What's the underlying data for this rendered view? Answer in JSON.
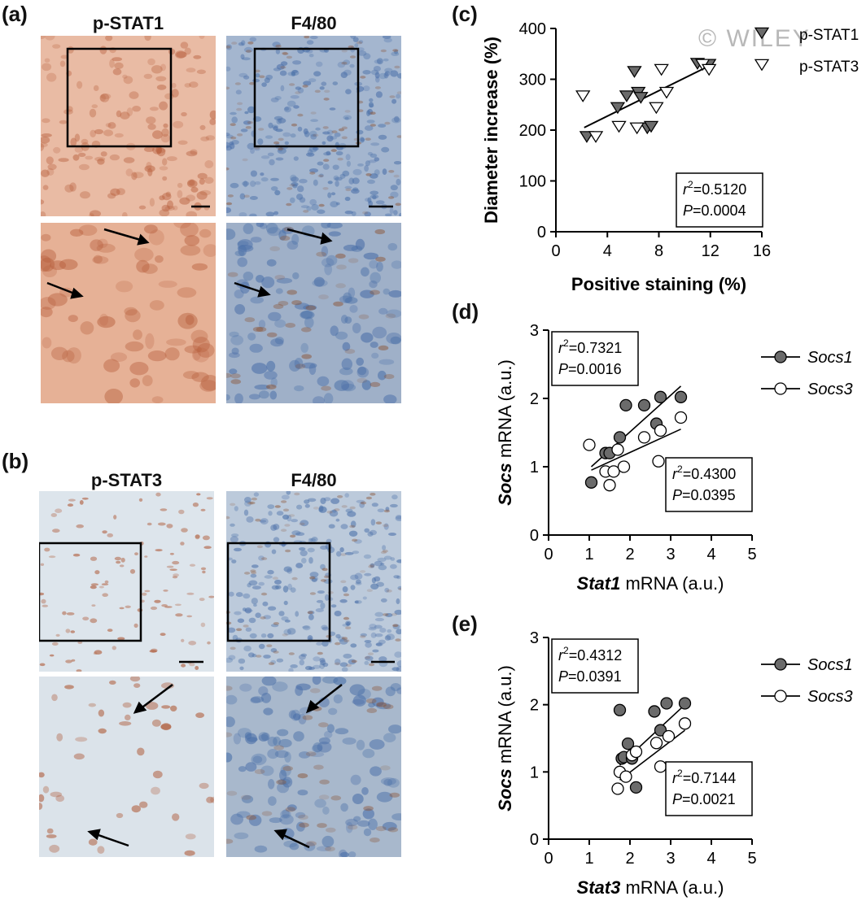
{
  "panels": {
    "a": {
      "label": "(a)",
      "col1": "p-STAT1",
      "col2": "F4/80"
    },
    "b": {
      "label": "(b)",
      "col1": "p-STAT3",
      "col2": "F4/80"
    },
    "c": {
      "label": "(c)"
    },
    "d": {
      "label": "(d)"
    },
    "e": {
      "label": "(e)"
    }
  },
  "watermark": "© WILEY",
  "colors": {
    "pstat1_bg": "#e8b7a0",
    "pstat1_cell": "#b8603e",
    "f480_bg": "#9fb3cf",
    "f480_cell": "#4a6fa8",
    "pstat3_bg": "#dfe6ec",
    "pstat3_cell": "#b06040",
    "filled_marker": "#6b6b6b"
  },
  "chart_data": [
    {
      "id": "c",
      "type": "scatter",
      "xlabel": "Positive staining (%)",
      "ylabel": "Diameter increase (%)",
      "xlim": [
        0,
        16
      ],
      "ylim": [
        0,
        400
      ],
      "xticks": [
        0,
        4,
        8,
        12,
        16
      ],
      "yticks": [
        0,
        100,
        200,
        300,
        400
      ],
      "legend_position": "top-right",
      "series": [
        {
          "name": "p-STAT1",
          "marker": "triangle-down-filled",
          "x": [
            2.4,
            4.8,
            5.5,
            6.1,
            6.4,
            6.6,
            7.1,
            7.4,
            11.0,
            11.9
          ],
          "y": [
            188,
            245,
            268,
            316,
            275,
            265,
            205,
            208,
            332,
            330
          ]
        },
        {
          "name": "p-STAT3",
          "marker": "triangle-down-open",
          "x": [
            2.1,
            3.1,
            4.9,
            6.3,
            7.8,
            8.2,
            8.6,
            11.4,
            11.9
          ],
          "y": [
            268,
            188,
            208,
            205,
            245,
            320,
            275,
            330,
            320
          ]
        }
      ],
      "fit": {
        "x": [
          2.2,
          11.8
        ],
        "y": [
          205,
          325
        ]
      },
      "stats": {
        "r2": "=0.5120",
        "p": "=0.0004"
      }
    },
    {
      "id": "d",
      "type": "scatter",
      "xlabel_italic": "Stat1",
      "xlabel_rest": " mRNA (a.u.)",
      "ylabel_italic": "Socs",
      "ylabel_rest": " mRNA (a.u.)",
      "xlim": [
        0,
        5
      ],
      "ylim": [
        0,
        3
      ],
      "xticks": [
        0,
        1,
        2,
        3,
        4,
        5
      ],
      "yticks": [
        0,
        1,
        2,
        3
      ],
      "legend_position": "top-right",
      "series": [
        {
          "name": "Socs1",
          "marker": "circle-filled",
          "x": [
            1.05,
            1.4,
            1.5,
            1.75,
            1.9,
            2.35,
            2.65,
            2.75,
            3.25
          ],
          "y": [
            0.77,
            1.2,
            1.2,
            1.43,
            1.9,
            1.9,
            1.63,
            2.02,
            2.02
          ]
        },
        {
          "name": "Socs3",
          "marker": "circle-open",
          "x": [
            1.0,
            1.4,
            1.5,
            1.6,
            1.7,
            1.85,
            2.35,
            2.7,
            2.75,
            3.25
          ],
          "y": [
            1.32,
            0.93,
            0.73,
            0.93,
            1.25,
            1.0,
            1.43,
            1.08,
            1.53,
            1.72
          ]
        }
      ],
      "fits": [
        {
          "x": [
            1.05,
            3.25
          ],
          "y": [
            1.0,
            2.18
          ]
        },
        {
          "x": [
            1.05,
            3.25
          ],
          "y": [
            0.95,
            1.55
          ]
        }
      ],
      "stats": [
        {
          "r2": "=0.7321",
          "p": "=0.0016"
        },
        {
          "r2": "=0.4300",
          "p": "=0.0395"
        }
      ]
    },
    {
      "id": "e",
      "type": "scatter",
      "xlabel_italic": "Stat3",
      "xlabel_rest": " mRNA (a.u.)",
      "ylabel_italic": "Socs",
      "ylabel_rest": " mRNA (a.u.)",
      "xlim": [
        0,
        5
      ],
      "ylim": [
        0,
        3
      ],
      "xticks": [
        0,
        1,
        2,
        3,
        4,
        5
      ],
      "yticks": [
        0,
        1,
        2,
        3
      ],
      "legend_position": "top-right",
      "series": [
        {
          "name": "Socs1",
          "marker": "circle-filled",
          "x": [
            1.75,
            1.8,
            1.85,
            1.95,
            2.05,
            2.15,
            2.6,
            2.75,
            2.9,
            3.35
          ],
          "y": [
            1.92,
            1.2,
            1.22,
            1.42,
            1.2,
            0.77,
            1.9,
            1.62,
            2.02,
            2.02
          ]
        },
        {
          "name": "Socs3",
          "marker": "circle-open",
          "x": [
            1.7,
            1.75,
            1.9,
            2.05,
            2.15,
            2.65,
            2.75,
            2.95,
            3.35
          ],
          "y": [
            0.75,
            1.0,
            0.93,
            1.25,
            1.3,
            1.43,
            1.08,
            1.53,
            1.72
          ]
        }
      ],
      "fits": [
        {
          "x": [
            1.75,
            3.35
          ],
          "y": [
            1.1,
            2.0
          ]
        },
        {
          "x": [
            1.75,
            3.35
          ],
          "y": [
            0.88,
            1.62
          ]
        }
      ],
      "stats": [
        {
          "r2": "=0.4312",
          "p": "=0.0391"
        },
        {
          "r2": "=0.7144",
          "p": "=0.0021"
        }
      ]
    }
  ]
}
